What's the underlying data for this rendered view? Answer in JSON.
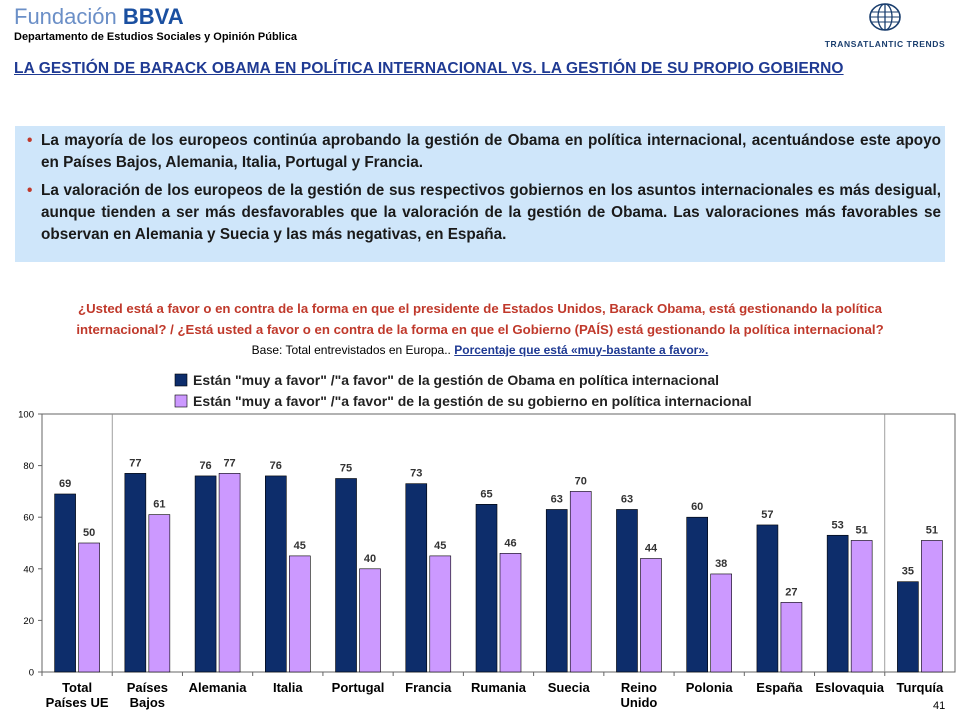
{
  "header": {
    "logo_main": "Fundación",
    "logo_brand": "BBVA",
    "department": "Departamento de Estudios Sociales y Opinión Pública",
    "right_logo": "TRANSATLANTIC TRENDS"
  },
  "title": "LA GESTIÓN DE BARACK OBAMA EN POLÍTICA INTERNACIONAL VS. LA GESTIÓN DE SU PROPIO GOBIERNO",
  "bullets": [
    "La mayoría de los europeos continúa aprobando la gestión de Obama en política internacional, acentuándose este apoyo en Países Bajos, Alemania, Italia, Portugal y Francia.",
    "La valoración de los europeos de la gestión de sus respectivos gobiernos en los asuntos internacionales es más desigual, aunque tienden a ser más desfavorables que la valoración de la gestión de Obama. Las valoraciones más favorables se observan en Alemania y Suecia y las más negativas, en España."
  ],
  "question": {
    "line1": "¿Usted está a favor o en contra de la forma en que el presidente de Estados Unidos, Barack Obama, está gestionando la política",
    "line2": "internacional? / ¿Está usted a favor o en contra de la forma en que el Gobierno (PAÍS) está gestionando la política internacional?"
  },
  "base": {
    "text": "Base: Total entrevistados en Europa..",
    "highlight": "Porcentaje que está «muy-bastante a favor»."
  },
  "page_number": "41",
  "colors": {
    "obama": "#0d2d6b",
    "gobierno": "#cc99ff",
    "title": "#1f3a93",
    "question": "#c0392b",
    "box": "#cfe6fa"
  },
  "chart_data": {
    "type": "bar",
    "categories": [
      [
        "Total",
        "Países UE"
      ],
      [
        "Países",
        "Bajos"
      ],
      [
        "Alemania"
      ],
      [
        "Italia"
      ],
      [
        "Portugal"
      ],
      [
        "Francia"
      ],
      [
        "Rumania"
      ],
      [
        "Suecia"
      ],
      [
        "Reino",
        "Unido"
      ],
      [
        "Polonia"
      ],
      [
        "España"
      ],
      [
        "Eslovaquia"
      ],
      [
        "Turquía"
      ]
    ],
    "series": [
      {
        "name": "Están \"muy a favor\" /\"a favor\" de la gestión de Obama en política internacional",
        "values": [
          69,
          77,
          76,
          76,
          75,
          73,
          65,
          63,
          63,
          60,
          57,
          53,
          35
        ]
      },
      {
        "name": "Están \"muy a favor\" /\"a favor\" de la gestión de su gobierno en política internacional",
        "values": [
          50,
          61,
          77,
          45,
          40,
          45,
          46,
          70,
          44,
          38,
          27,
          51,
          51
        ]
      }
    ],
    "ylim": [
      0,
      100
    ],
    "yticks": [
      0,
      20,
      40,
      60,
      80,
      100
    ],
    "legend_position": "top",
    "grid": false
  }
}
